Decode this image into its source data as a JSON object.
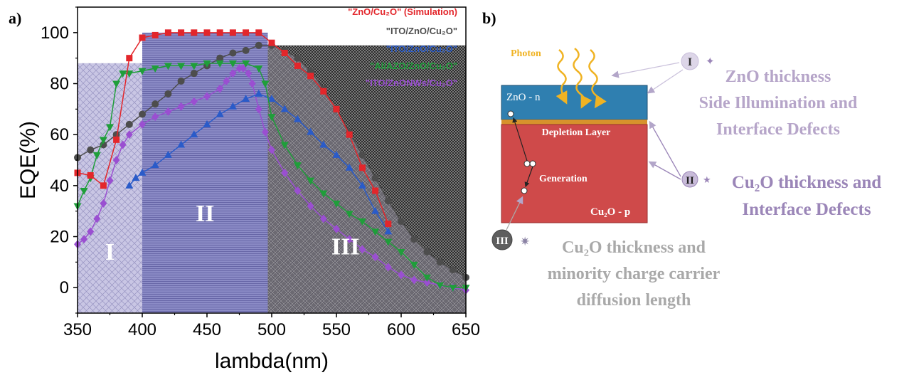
{
  "panels": {
    "a_label": "a)",
    "b_label": "b)"
  },
  "chart_data": {
    "type": "line",
    "xlabel": "lambda(nm)",
    "ylabel": "EQE(%)",
    "xlim": [
      350,
      650
    ],
    "ylim": [
      -10,
      110
    ],
    "xticks": [
      350,
      400,
      450,
      500,
      550,
      600,
      650
    ],
    "yticks": [
      0,
      20,
      40,
      60,
      80,
      100
    ],
    "grid": false,
    "legend_position": "top-right",
    "regions": [
      {
        "label": "I",
        "x_start": 350,
        "x_end": 400
      },
      {
        "label": "II",
        "x_start": 400,
        "x_end": 497
      },
      {
        "label": "III",
        "x_start": 497,
        "x_end": 650
      }
    ],
    "series": [
      {
        "name": "\"ZnO/Cu₂O\" (Simulation)",
        "color": "#e3262b",
        "marker": "square",
        "x": [
          350,
          360,
          370,
          380,
          390,
          400,
          410,
          420,
          430,
          440,
          450,
          460,
          470,
          480,
          490,
          500,
          510,
          520,
          530,
          540,
          550,
          560,
          570,
          580,
          590
        ],
        "y": [
          45,
          44,
          40,
          58,
          90,
          98,
          99,
          100,
          100,
          100,
          100,
          100,
          100,
          100,
          100,
          96,
          92,
          87,
          83,
          77,
          70,
          60,
          47,
          38,
          25
        ]
      },
      {
        "name": "\"ITO/ZnO/Cu₂O\"",
        "color": "#4d4d4d",
        "marker": "circle",
        "x": [
          350,
          360,
          370,
          380,
          390,
          400,
          410,
          420,
          430,
          440,
          450,
          460,
          470,
          480,
          490,
          500,
          510,
          520,
          530,
          540,
          550,
          560,
          570,
          580,
          590,
          600,
          610,
          620,
          630,
          640,
          650
        ],
        "y": [
          51,
          54,
          56,
          60,
          64,
          68,
          72,
          76,
          81,
          84,
          87,
          90,
          92,
          93,
          95,
          95,
          93,
          90,
          85,
          78,
          70,
          61,
          52,
          43,
          34,
          26,
          19,
          14,
          10,
          7,
          4
        ]
      },
      {
        "name": "\"ITO/ZnO/Cu₂O\"",
        "color": "#2a5bc9",
        "marker": "triangle-up",
        "x": [
          390,
          395,
          400,
          410,
          420,
          430,
          440,
          450,
          460,
          470,
          480,
          490,
          500,
          510,
          520,
          530,
          540,
          550,
          560,
          570,
          580,
          590
        ],
        "y": [
          40,
          43,
          45,
          48,
          52,
          56,
          60,
          64,
          68,
          71,
          74,
          76,
          74,
          70,
          66,
          61,
          56,
          52,
          47,
          40,
          30,
          22
        ]
      },
      {
        "name": "\"Al/AZO/ZnO/Cu₂O\"",
        "color": "#1f9e3a",
        "marker": "triangle-down",
        "x": [
          350,
          355,
          360,
          365,
          370,
          375,
          380,
          385,
          390,
          400,
          410,
          420,
          430,
          440,
          450,
          460,
          470,
          480,
          490,
          495,
          500,
          510,
          520,
          530,
          540,
          550,
          560,
          570,
          580,
          590,
          600,
          610,
          620,
          630,
          640,
          650
        ],
        "y": [
          32,
          38,
          43,
          52,
          58,
          63,
          80,
          84,
          84,
          85,
          86,
          87,
          87,
          87,
          88,
          88,
          88,
          88,
          86,
          80,
          67,
          56,
          48,
          42,
          37,
          33,
          29,
          26,
          22,
          18,
          14,
          9,
          4,
          1,
          0,
          0
        ]
      },
      {
        "name": "\"ITO/ZnONWs/Cu₂O\"",
        "color": "#9a4fd1",
        "marker": "diamond",
        "x": [
          350,
          355,
          360,
          365,
          370,
          375,
          380,
          385,
          390,
          400,
          410,
          420,
          430,
          440,
          450,
          460,
          465,
          470,
          475,
          478,
          482,
          485,
          490,
          495,
          500,
          510,
          520,
          530,
          540,
          550,
          560,
          570,
          580,
          590,
          600,
          610,
          620,
          630,
          640,
          650
        ],
        "y": [
          17,
          19,
          22,
          27,
          33,
          42,
          50,
          56,
          60,
          64,
          67,
          69,
          71,
          73,
          75,
          78,
          81,
          84,
          86,
          86,
          84,
          80,
          70,
          61,
          54,
          45,
          38,
          32,
          27,
          23,
          19,
          15,
          12,
          8,
          5,
          3,
          2,
          1,
          0,
          -1
        ]
      }
    ]
  },
  "diagram": {
    "photon_label": "Photon",
    "layer_n": "ZnO - n",
    "layer_depletion": "Depletion Layer",
    "generation_label": "Generation",
    "layer_p": "Cu₂O - p",
    "badge_1": "I",
    "badge_2": "II",
    "badge_3": "III",
    "text_1_line1": "ZnO thickness",
    "text_1_line2": "Side Illumination and",
    "text_1_line3": "Interface Defects",
    "text_2_line1": "Cu₂O thickness and",
    "text_2_line2": "Interface Defects",
    "text_3_line1": "Cu₂O thickness and",
    "text_3_line2": "minority charge carrier",
    "text_3_line3": "diffusion length",
    "colors": {
      "n_layer": "#2f7fb0",
      "p_layer": "#cf4a4a",
      "depletion": "#d7922c",
      "photon": "#f0b323",
      "text_1": "#b6a5c9",
      "text_2": "#9b86b8",
      "text_3": "#a9a9a9"
    }
  }
}
